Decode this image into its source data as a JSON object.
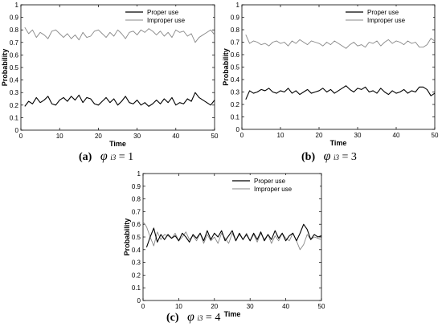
{
  "chart_data": [
    {
      "type": "line",
      "xlabel": "Time",
      "ylabel": "Probability",
      "xlim": [
        0,
        50
      ],
      "ylim": [
        0,
        1
      ],
      "xticks": [
        "0",
        "10",
        "20",
        "30",
        "40",
        "50"
      ],
      "yticks": [
        "0",
        "0.1",
        "0.2",
        "0.3",
        "0.4",
        "0.5",
        "0.6",
        "0.7",
        "0.8",
        "0.9",
        "1"
      ],
      "legend": "top-right",
      "caption": {
        "label": "(a)",
        "symbol": "φ",
        "subscript": "i3",
        "equation": "= 1"
      },
      "series": [
        {
          "name": "Proper use",
          "color": "#000000",
          "x": [
            1,
            2,
            3,
            4,
            5,
            6,
            7,
            8,
            9,
            10,
            11,
            12,
            13,
            14,
            15,
            16,
            17,
            18,
            19,
            20,
            21,
            22,
            23,
            24,
            25,
            26,
            27,
            28,
            29,
            30,
            31,
            32,
            33,
            34,
            35,
            36,
            37,
            38,
            39,
            40,
            41,
            42,
            43,
            44,
            45,
            46,
            47,
            48,
            49,
            50
          ],
          "y": [
            0.19,
            0.23,
            0.21,
            0.26,
            0.22,
            0.24,
            0.27,
            0.21,
            0.2,
            0.24,
            0.26,
            0.23,
            0.27,
            0.24,
            0.28,
            0.22,
            0.26,
            0.25,
            0.21,
            0.2,
            0.23,
            0.26,
            0.22,
            0.25,
            0.2,
            0.23,
            0.27,
            0.22,
            0.21,
            0.24,
            0.2,
            0.22,
            0.19,
            0.21,
            0.24,
            0.21,
            0.25,
            0.22,
            0.26,
            0.2,
            0.22,
            0.21,
            0.25,
            0.23,
            0.3,
            0.26,
            0.24,
            0.22,
            0.2,
            0.24
          ]
        },
        {
          "name": "Improper use",
          "color": "#888888",
          "x": [
            1,
            2,
            3,
            4,
            5,
            6,
            7,
            8,
            9,
            10,
            11,
            12,
            13,
            14,
            15,
            16,
            17,
            18,
            19,
            20,
            21,
            22,
            23,
            24,
            25,
            26,
            27,
            28,
            29,
            30,
            31,
            32,
            33,
            34,
            35,
            36,
            37,
            38,
            39,
            40,
            41,
            42,
            43,
            44,
            45,
            46,
            47,
            48,
            49,
            50
          ],
          "y": [
            0.82,
            0.77,
            0.8,
            0.74,
            0.78,
            0.76,
            0.73,
            0.79,
            0.8,
            0.77,
            0.74,
            0.77,
            0.73,
            0.76,
            0.72,
            0.78,
            0.74,
            0.75,
            0.79,
            0.8,
            0.77,
            0.74,
            0.78,
            0.75,
            0.8,
            0.77,
            0.73,
            0.78,
            0.79,
            0.76,
            0.8,
            0.78,
            0.81,
            0.79,
            0.76,
            0.79,
            0.75,
            0.78,
            0.74,
            0.8,
            0.78,
            0.79,
            0.75,
            0.77,
            0.7,
            0.74,
            0.76,
            0.78,
            0.8,
            0.76
          ]
        }
      ]
    },
    {
      "type": "line",
      "xlabel": "Time",
      "ylabel": "Probability",
      "xlim": [
        0,
        50
      ],
      "ylim": [
        0,
        1
      ],
      "xticks": [
        "0",
        "10",
        "20",
        "30",
        "40",
        "50"
      ],
      "yticks": [
        "0",
        "0.1",
        "0.2",
        "0.3",
        "0.4",
        "0.5",
        "0.6",
        "0.7",
        "0.8",
        "0.9",
        "1"
      ],
      "legend": "top-right",
      "caption": {
        "label": "(b)",
        "symbol": "φ",
        "subscript": "i3",
        "equation": "= 3"
      },
      "series": [
        {
          "name": "Proper use",
          "color": "#000000",
          "x": [
            1,
            2,
            3,
            4,
            5,
            6,
            7,
            8,
            9,
            10,
            11,
            12,
            13,
            14,
            15,
            16,
            17,
            18,
            19,
            20,
            21,
            22,
            23,
            24,
            25,
            26,
            27,
            28,
            29,
            30,
            31,
            32,
            33,
            34,
            35,
            36,
            37,
            38,
            39,
            40,
            41,
            42,
            43,
            44,
            45,
            46,
            47,
            48,
            49,
            50
          ],
          "y": [
            0.24,
            0.31,
            0.29,
            0.3,
            0.32,
            0.31,
            0.33,
            0.3,
            0.29,
            0.31,
            0.3,
            0.33,
            0.29,
            0.31,
            0.28,
            0.3,
            0.32,
            0.29,
            0.3,
            0.31,
            0.33,
            0.3,
            0.32,
            0.29,
            0.31,
            0.33,
            0.35,
            0.32,
            0.3,
            0.33,
            0.32,
            0.34,
            0.3,
            0.31,
            0.29,
            0.33,
            0.3,
            0.28,
            0.31,
            0.29,
            0.3,
            0.32,
            0.29,
            0.31,
            0.3,
            0.34,
            0.34,
            0.32,
            0.27,
            0.29
          ]
        },
        {
          "name": "Improper use",
          "color": "#888888",
          "x": [
            1,
            2,
            3,
            4,
            5,
            6,
            7,
            8,
            9,
            10,
            11,
            12,
            13,
            14,
            15,
            16,
            17,
            18,
            19,
            20,
            21,
            22,
            23,
            24,
            25,
            26,
            27,
            28,
            29,
            30,
            31,
            32,
            33,
            34,
            35,
            36,
            37,
            38,
            39,
            40,
            41,
            42,
            43,
            44,
            45,
            46,
            47,
            48,
            49,
            50
          ],
          "y": [
            0.76,
            0.69,
            0.71,
            0.7,
            0.68,
            0.69,
            0.67,
            0.7,
            0.71,
            0.69,
            0.7,
            0.67,
            0.71,
            0.69,
            0.72,
            0.7,
            0.68,
            0.71,
            0.7,
            0.69,
            0.67,
            0.7,
            0.68,
            0.71,
            0.69,
            0.67,
            0.65,
            0.68,
            0.7,
            0.67,
            0.68,
            0.66,
            0.7,
            0.69,
            0.71,
            0.67,
            0.7,
            0.72,
            0.69,
            0.71,
            0.7,
            0.68,
            0.71,
            0.69,
            0.7,
            0.66,
            0.66,
            0.68,
            0.73,
            0.71
          ]
        }
      ]
    },
    {
      "type": "line",
      "xlabel": "Time",
      "ylabel": "Probability",
      "xlim": [
        0,
        50
      ],
      "ylim": [
        0,
        1
      ],
      "xticks": [
        "0",
        "10",
        "20",
        "30",
        "40",
        "50"
      ],
      "yticks": [
        "0",
        "0.1",
        "0.2",
        "0.3",
        "0.4",
        "0.5",
        "0.6",
        "0.7",
        "0.8",
        "0.9",
        "1"
      ],
      "legend": "top-right",
      "caption": {
        "label": "(c)",
        "symbol": "φ",
        "subscript": "i3",
        "equation": "= 4"
      },
      "series": [
        {
          "name": "Proper use",
          "color": "#000000",
          "x": [
            1,
            2,
            3,
            4,
            5,
            6,
            7,
            8,
            9,
            10,
            11,
            12,
            13,
            14,
            15,
            16,
            17,
            18,
            19,
            20,
            21,
            22,
            23,
            24,
            25,
            26,
            27,
            28,
            29,
            30,
            31,
            32,
            33,
            34,
            35,
            36,
            37,
            38,
            39,
            40,
            41,
            42,
            43,
            44,
            45,
            46,
            47,
            48,
            49,
            50
          ],
          "y": [
            0.42,
            0.5,
            0.57,
            0.46,
            0.52,
            0.48,
            0.52,
            0.49,
            0.51,
            0.47,
            0.53,
            0.5,
            0.46,
            0.52,
            0.49,
            0.53,
            0.47,
            0.55,
            0.48,
            0.53,
            0.5,
            0.55,
            0.47,
            0.51,
            0.55,
            0.47,
            0.53,
            0.48,
            0.52,
            0.47,
            0.53,
            0.48,
            0.54,
            0.47,
            0.52,
            0.48,
            0.55,
            0.49,
            0.53,
            0.47,
            0.51,
            0.53,
            0.47,
            0.53,
            0.6,
            0.56,
            0.48,
            0.52,
            0.5,
            0.51
          ]
        },
        {
          "name": "Improper use",
          "color": "#888888",
          "x": [
            0,
            1,
            2,
            3,
            4,
            5,
            6,
            7,
            8,
            9,
            10,
            11,
            12,
            13,
            14,
            15,
            16,
            17,
            18,
            19,
            20,
            21,
            22,
            23,
            24,
            25,
            26,
            27,
            28,
            29,
            30,
            31,
            32,
            33,
            34,
            35,
            36,
            37,
            38,
            39,
            40,
            41,
            42,
            43,
            44,
            45,
            46,
            47,
            48,
            49,
            50
          ],
          "y": [
            0.62,
            0.58,
            0.5,
            0.43,
            0.54,
            0.48,
            0.52,
            0.51,
            0.49,
            0.53,
            0.47,
            0.5,
            0.54,
            0.48,
            0.51,
            0.47,
            0.53,
            0.45,
            0.52,
            0.47,
            0.5,
            0.45,
            0.53,
            0.49,
            0.45,
            0.53,
            0.47,
            0.52,
            0.48,
            0.53,
            0.47,
            0.52,
            0.46,
            0.53,
            0.48,
            0.52,
            0.45,
            0.51,
            0.47,
            0.53,
            0.49,
            0.47,
            0.53,
            0.47,
            0.4,
            0.44,
            0.52,
            0.48,
            0.5,
            0.49,
            0.48
          ]
        }
      ]
    }
  ]
}
